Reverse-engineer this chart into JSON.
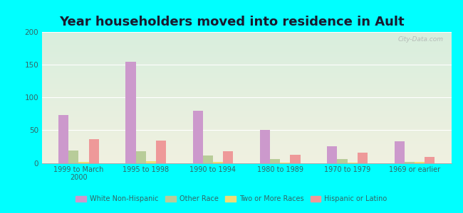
{
  "title": "Year householders moved into residence in Ault",
  "categories": [
    "1999 to March\n2000",
    "1995 to 1998",
    "1990 to 1994",
    "1980 to 1989",
    "1970 to 1979",
    "1969 or earlier"
  ],
  "series": {
    "White Non-Hispanic": [
      73,
      155,
      80,
      50,
      25,
      33
    ],
    "Other Race": [
      19,
      18,
      11,
      6,
      6,
      2
    ],
    "Two or More Races": [
      2,
      3,
      2,
      1,
      1,
      2
    ],
    "Hispanic or Latino": [
      36,
      34,
      18,
      13,
      16,
      9
    ]
  },
  "colors": {
    "White Non-Hispanic": "#cc99cc",
    "Other Race": "#b8cc99",
    "Two or More Races": "#eedd77",
    "Hispanic or Latino": "#ee9999"
  },
  "ylim": [
    0,
    200
  ],
  "yticks": [
    0,
    50,
    100,
    150,
    200
  ],
  "background_top": "#d8eedd",
  "background_bottom": "#f0f0e0",
  "outer_background": "#00ffff",
  "title_fontsize": 13,
  "title_color": "#1a1a2e",
  "tick_color": "#336666",
  "watermark": "City-Data.com"
}
